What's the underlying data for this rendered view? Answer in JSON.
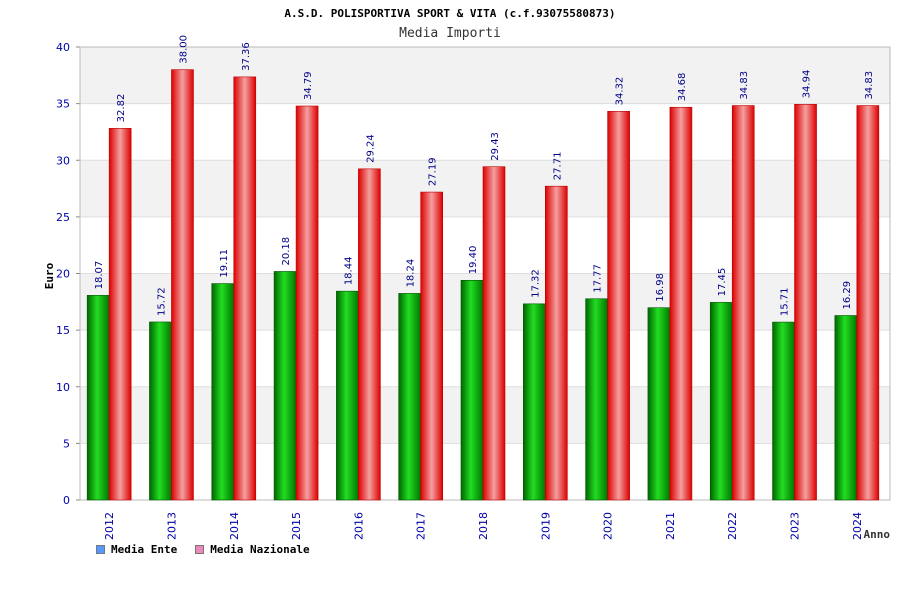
{
  "chart_data": {
    "type": "bar",
    "title": "A.S.D. POLISPORTIVA SPORT & VITA (c.f.93075580873)",
    "subtitle": "Media Importi",
    "xlabel": "Anno",
    "ylabel": "Euro",
    "ylim": [
      0,
      40
    ],
    "yticks": [
      0,
      5,
      10,
      15,
      20,
      25,
      30,
      35,
      40
    ],
    "grid": true,
    "legend_position": "bottom-left",
    "categories": [
      "2012",
      "2013",
      "2014",
      "2015",
      "2016",
      "2017",
      "2018",
      "2019",
      "2020",
      "2021",
      "2022",
      "2023",
      "2024"
    ],
    "series": [
      {
        "name": "Media Ente",
        "color": "#00aa00",
        "values": [
          18.07,
          15.72,
          19.11,
          20.18,
          18.44,
          18.24,
          19.4,
          17.32,
          17.77,
          16.98,
          17.45,
          15.71,
          16.29
        ],
        "labels": [
          "18.07",
          "15.72",
          "19.11",
          "20.18",
          "18.44",
          "18.24",
          "19.40",
          "17.32",
          "17.77",
          "16.98",
          "17.45",
          "15.71",
          "16.29"
        ]
      },
      {
        "name": "Media Nazionale",
        "color": "#ee1111",
        "values": [
          32.82,
          38.0,
          37.36,
          34.79,
          29.24,
          27.19,
          29.43,
          27.71,
          34.32,
          34.68,
          34.83,
          34.94,
          34.83
        ],
        "labels": [
          "32.82",
          "38.00",
          "37.36",
          "34.79",
          "29.24",
          "27.19",
          "29.43",
          "27.71",
          "34.32",
          "34.68",
          "34.83",
          "34.94",
          "34.83"
        ]
      }
    ]
  },
  "legend": [
    {
      "label": "Media Ente",
      "swatch_color": "#5599ff"
    },
    {
      "label": "Media Nazionale",
      "swatch_color": "#ee88bb"
    }
  ]
}
